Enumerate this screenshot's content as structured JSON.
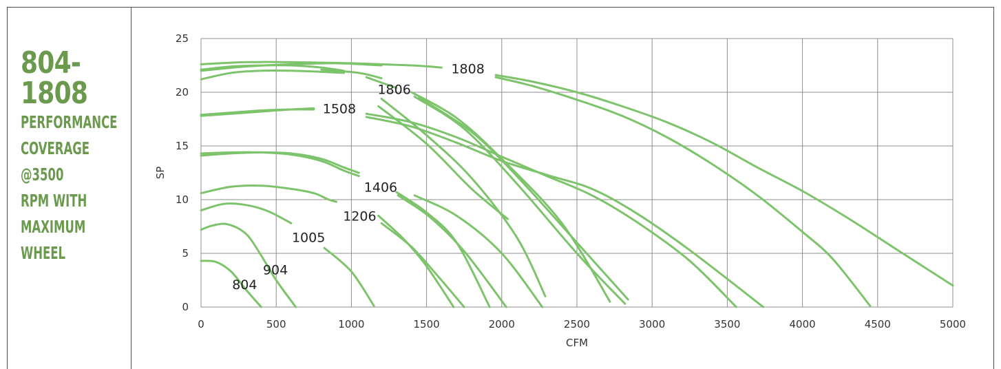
{
  "sidebar": {
    "model_line1": "804-",
    "model_line2": "1808",
    "lines": [
      "Performance",
      "Coverage",
      "@3500",
      "RPM With",
      "Maximum",
      "Wheel"
    ]
  },
  "chart_data": {
    "type": "line",
    "xlabel": "CFM",
    "ylabel": "SP",
    "xlim": [
      0,
      5000
    ],
    "ylim": [
      0,
      25
    ],
    "x_ticks": [
      "0",
      "500",
      "1000",
      "1500",
      "2000",
      "2500",
      "3000",
      "3500",
      "4000",
      "4500",
      "5000"
    ],
    "y_ticks": [
      "0",
      "5",
      "10",
      "15",
      "20",
      "25"
    ],
    "grid": true,
    "line_color": "#7dc36b",
    "series": [
      {
        "name": "804",
        "label_at": [
          290,
          2.1
        ],
        "curves": [
          [
            [
              0,
              4.3
            ],
            [
              100,
              4.2
            ],
            [
              200,
              3.3
            ],
            [
              300,
              1.6
            ],
            [
              400,
              0
            ]
          ]
        ]
      },
      {
        "name": "904",
        "label_at": [
          495,
          3.5
        ],
        "curves": [
          [
            [
              0,
              7.2
            ],
            [
              80,
              7.6
            ],
            [
              180,
              7.7
            ],
            [
              300,
              6.8
            ],
            [
              400,
              4.8
            ],
            [
              500,
              2.5
            ],
            [
              630,
              0
            ]
          ]
        ]
      },
      {
        "name": "1005",
        "label_at": [
          715,
          6.5
        ],
        "curves": [
          [
            [
              0,
              9.0
            ],
            [
              150,
              9.6
            ],
            [
              300,
              9.5
            ],
            [
              450,
              8.9
            ],
            [
              600,
              7.8
            ]
          ],
          [
            [
              820,
              5.5
            ],
            [
              1000,
              3.3
            ],
            [
              1150,
              0.1
            ]
          ]
        ]
      },
      {
        "name": "1206",
        "label_at": [
          1055,
          8.5
        ],
        "curves": [
          [
            [
              0,
              10.6
            ],
            [
              200,
              11.2
            ],
            [
              400,
              11.3
            ],
            [
              600,
              11.0
            ],
            [
              750,
              10.6
            ],
            [
              850,
              10.0
            ],
            [
              900,
              9.8
            ]
          ],
          [
            [
              1180,
              8.5
            ],
            [
              1350,
              6.3
            ],
            [
              1500,
              3.8
            ],
            [
              1680,
              0
            ]
          ],
          [
            [
              1200,
              7.8
            ],
            [
              1400,
              5.6
            ],
            [
              1580,
              2.8
            ],
            [
              1750,
              0
            ]
          ]
        ]
      },
      {
        "name": "1406",
        "label_at": [
          1195,
          11.2
        ],
        "curves": [
          [
            [
              0,
              14.1
            ],
            [
              200,
              14.3
            ],
            [
              400,
              14.4
            ],
            [
              600,
              14.3
            ],
            [
              800,
              13.8
            ],
            [
              950,
              13.0
            ],
            [
              1050,
              12.5
            ]
          ],
          [
            [
              0,
              14.3
            ],
            [
              200,
              14.4
            ],
            [
              400,
              14.4
            ],
            [
              600,
              14.2
            ],
            [
              800,
              13.6
            ],
            [
              950,
              12.7
            ],
            [
              1050,
              12.2
            ]
          ],
          [
            [
              1300,
              10.7
            ],
            [
              1500,
              8.8
            ],
            [
              1700,
              6.0
            ],
            [
              1920,
              0
            ]
          ],
          [
            [
              1310,
              10.4
            ],
            [
              1520,
              8.4
            ],
            [
              1750,
              5.2
            ],
            [
              2030,
              0
            ]
          ],
          [
            [
              1420,
              10.4
            ],
            [
              1700,
              8.5
            ],
            [
              2000,
              5.0
            ],
            [
              2270,
              0
            ]
          ]
        ]
      },
      {
        "name": "1508",
        "label_at": [
          920,
          18.5
        ],
        "curves": [
          [
            [
              0,
              17.8
            ],
            [
              200,
              18.0
            ],
            [
              400,
              18.2
            ],
            [
              600,
              18.4
            ],
            [
              750,
              18.5
            ]
          ],
          [
            [
              0,
              17.9
            ],
            [
              200,
              18.1
            ],
            [
              400,
              18.3
            ],
            [
              600,
              18.4
            ],
            [
              750,
              18.4
            ]
          ],
          [
            [
              1100,
              18.0
            ],
            [
              1400,
              17.2
            ],
            [
              1700,
              15.8
            ],
            [
              2000,
              14.0
            ],
            [
              2300,
              12.2
            ],
            [
              2600,
              10.4
            ],
            [
              2900,
              7.9
            ],
            [
              3250,
              4.3
            ],
            [
              3560,
              0
            ]
          ],
          [
            [
              1100,
              17.7
            ],
            [
              1400,
              16.8
            ],
            [
              1700,
              15.3
            ],
            [
              2000,
              13.6
            ],
            [
              2300,
              12.3
            ],
            [
              2600,
              11.0
            ],
            [
              2900,
              8.7
            ],
            [
              3250,
              5.3
            ],
            [
              3740,
              0
            ]
          ]
        ]
      },
      {
        "name": "1806",
        "label_at": [
          1285,
          20.3
        ],
        "curves": [
          [
            [
              0,
              21.2
            ],
            [
              200,
              21.8
            ],
            [
              400,
              22.0
            ],
            [
              600,
              22.0
            ],
            [
              800,
              21.9
            ],
            [
              950,
              21.8
            ]
          ],
          [
            [
              0,
              22.1
            ],
            [
              200,
              22.4
            ],
            [
              400,
              22.5
            ],
            [
              600,
              22.5
            ],
            [
              800,
              22.3
            ],
            [
              950,
              22.0
            ]
          ],
          [
            [
              800,
              22.1
            ],
            [
              1050,
              21.8
            ],
            [
              1200,
              21.3
            ]
          ],
          [
            [
              1100,
              21.4
            ],
            [
              1300,
              20.4
            ]
          ],
          [
            [
              1400,
              20.0
            ],
            [
              1700,
              17.6
            ],
            [
              2000,
              13.8
            ],
            [
              2400,
              7.8
            ],
            [
              2720,
              0.5
            ]
          ],
          [
            [
              1450,
              19.5
            ],
            [
              1800,
              16.3
            ],
            [
              2100,
              12.2
            ],
            [
              2500,
              6.0
            ],
            [
              2840,
              0.7
            ]
          ],
          [
            [
              1420,
              19.6
            ],
            [
              1750,
              16.6
            ],
            [
              2100,
              11.5
            ],
            [
              2500,
              5.0
            ],
            [
              2820,
              0.3
            ]
          ],
          [
            [
              1200,
              19.4
            ],
            [
              1500,
              16.0
            ],
            [
              1800,
              12.0
            ],
            [
              2100,
              6.5
            ],
            [
              2290,
              1.0
            ]
          ],
          [
            [
              1180,
              18.7
            ],
            [
              1500,
              15.2
            ],
            [
              1800,
              11.0
            ],
            [
              2040,
              8.2
            ]
          ]
        ]
      },
      {
        "name": "1808",
        "label_at": [
          1775,
          22.2
        ],
        "curves": [
          [
            [
              0,
              22.6
            ],
            [
              300,
              22.8
            ],
            [
              600,
              22.8
            ],
            [
              1000,
              22.7
            ],
            [
              1400,
              22.5
            ],
            [
              1600,
              22.3
            ]
          ],
          [
            [
              0,
              22.0
            ],
            [
              300,
              22.4
            ],
            [
              600,
              22.6
            ],
            [
              900,
              22.7
            ],
            [
              1200,
              22.5
            ]
          ],
          [
            [
              1960,
              21.6
            ],
            [
              2200,
              21.0
            ],
            [
              2500,
              20.0
            ],
            [
              2800,
              18.7
            ],
            [
              3100,
              17.2
            ],
            [
              3400,
              15.3
            ],
            [
              3700,
              13.0
            ],
            [
              4000,
              10.8
            ],
            [
              4300,
              8.3
            ],
            [
              4600,
              5.6
            ],
            [
              5000,
              2.0
            ]
          ],
          [
            [
              1960,
              21.4
            ],
            [
              2200,
              20.6
            ],
            [
              2500,
              19.3
            ],
            [
              2800,
              17.8
            ],
            [
              3100,
              15.8
            ],
            [
              3400,
              13.3
            ],
            [
              3700,
              10.4
            ],
            [
              4000,
              7.0
            ],
            [
              4200,
              4.5
            ],
            [
              4450,
              0.1
            ]
          ]
        ]
      }
    ]
  }
}
